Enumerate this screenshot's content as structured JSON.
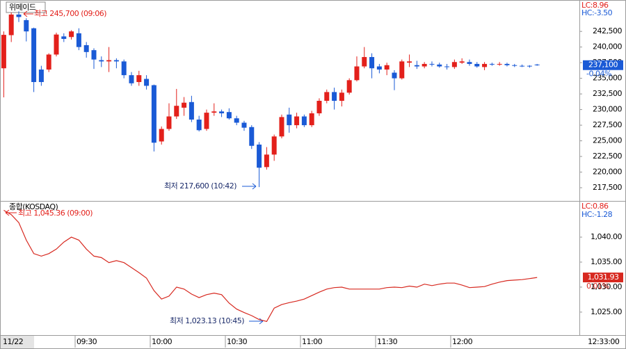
{
  "chart_data": [
    {
      "type": "candlestick",
      "title": "위메이드",
      "annotations": {
        "high": "최고 245,700 (09:06)",
        "low": "최저 217,600 (10:42)",
        "lc": "LC:8.96",
        "hc": "HC:-3.50",
        "last_price": "237,100",
        "change": "-0.04%"
      },
      "up_color": "#e3201b",
      "down_color": "#1a5ad6",
      "x": [
        0,
        3,
        6,
        9,
        12,
        15,
        18,
        21,
        24,
        27,
        30,
        33,
        36,
        39,
        42,
        45,
        48,
        51,
        54,
        57,
        60,
        63,
        66,
        69,
        72,
        75,
        78,
        81,
        84,
        87,
        90,
        93,
        96,
        99,
        102,
        105,
        108,
        111,
        114,
        117,
        120,
        123,
        126,
        129,
        132,
        135,
        138,
        141,
        144,
        147,
        150,
        153,
        156,
        159,
        162,
        165,
        168,
        171,
        174,
        177,
        180,
        183,
        186,
        189,
        192,
        195,
        198,
        201,
        204,
        207,
        210,
        213
      ],
      "open": [
        236600,
        241900,
        245200,
        244300,
        243000,
        236400,
        236400,
        238800,
        241700,
        241600,
        242200,
        240300,
        239500,
        237900,
        237700,
        237900,
        237700,
        235500,
        234400,
        234900,
        233900,
        224900,
        226900,
        228900,
        230300,
        231200,
        228400,
        226900,
        229500,
        229700,
        229600,
        228600,
        227900,
        227200,
        224400,
        220800,
        222800,
        225700,
        229200,
        227500,
        228900,
        227500,
        229400,
        231400,
        232800,
        231400,
        232700,
        234700,
        236900,
        238400,
        236900,
        236400,
        235900,
        235000,
        237500,
        237100,
        236900,
        237300,
        237200,
        236900,
        236800,
        237500,
        237600,
        237300,
        236800,
        237300,
        237200,
        237300,
        237100,
        237000,
        237000,
        237200
      ],
      "high": [
        242500,
        245500,
        245700,
        244600,
        243100,
        237000,
        239000,
        242300,
        242200,
        242700,
        243000,
        240800,
        239800,
        238500,
        240000,
        238200,
        238000,
        236000,
        236200,
        235500,
        234000,
        227300,
        231000,
        233300,
        232000,
        232200,
        229000,
        230000,
        231000,
        230000,
        230200,
        229000,
        228200,
        227500,
        224800,
        224000,
        226000,
        229200,
        230300,
        229500,
        229200,
        229800,
        231800,
        233200,
        233500,
        233200,
        235000,
        238500,
        240000,
        239000,
        237300,
        237500,
        236300,
        238000,
        238800,
        237800,
        237600,
        237700,
        237500,
        237300,
        238000,
        238200,
        238000,
        237600,
        237600,
        237500,
        237600,
        237500,
        237300,
        237200,
        237100,
        237300
      ],
      "low": [
        231950,
        240800,
        244000,
        240900,
        232800,
        233800,
        236000,
        238500,
        240800,
        241200,
        239500,
        238300,
        236500,
        236800,
        236000,
        236600,
        235000,
        233800,
        233800,
        233200,
        223300,
        224400,
        226600,
        228500,
        229000,
        228000,
        226500,
        226600,
        229000,
        228800,
        228400,
        227500,
        226600,
        223700,
        217600,
        220400,
        221800,
        225400,
        226300,
        227000,
        227200,
        227200,
        229000,
        231000,
        230000,
        230500,
        232400,
        234500,
        236600,
        235000,
        235800,
        235500,
        233100,
        234800,
        236800,
        236500,
        236600,
        236900,
        236700,
        236400,
        236500,
        237300,
        237000,
        236700,
        236300,
        237000,
        237000,
        236900,
        236800,
        236800,
        236700,
        237000
      ],
      "close": [
        241950,
        245200,
        244800,
        242500,
        234400,
        234400,
        238800,
        242000,
        241300,
        242500,
        240000,
        239200,
        238000,
        237700,
        237900,
        237700,
        235500,
        234200,
        235500,
        233800,
        224700,
        226900,
        228900,
        230600,
        231100,
        228400,
        226700,
        229500,
        229700,
        229400,
        228600,
        227900,
        227100,
        224200,
        220700,
        222800,
        225700,
        228800,
        227500,
        228900,
        227500,
        229400,
        231400,
        232800,
        231400,
        232700,
        234700,
        236900,
        238400,
        236600,
        236400,
        237100,
        235000,
        237700,
        237700,
        236900,
        237300,
        237200,
        236900,
        236800,
        237600,
        237700,
        237300,
        236900,
        237300,
        237200,
        237300,
        237100,
        237000,
        236900,
        236900,
        237100
      ],
      "xlim": [
        0,
        231.4
      ],
      "ylim": [
        215500,
        247300
      ],
      "yticks": [
        {
          "value": 217500,
          "label": "217,500"
        },
        {
          "value": 220000,
          "label": "220,000"
        },
        {
          "value": 222500,
          "label": "222,500"
        },
        {
          "value": 225000,
          "label": "225,000"
        },
        {
          "value": 227500,
          "label": "227,500"
        },
        {
          "value": 230000,
          "label": "230,000"
        },
        {
          "value": 232500,
          "label": "232,500"
        },
        {
          "value": 235000,
          "label": "235,000"
        },
        {
          "value": 237500,
          "label": "237,500"
        },
        {
          "value": 240000,
          "label": "240,000"
        },
        {
          "value": 242500,
          "label": "242,500"
        }
      ]
    },
    {
      "type": "line",
      "title": "종합(KOSDAQ)",
      "color": "#d7281f",
      "annotations": {
        "high": "최고 1,045.36 (09:00)",
        "low": "최저 1,023.13 (10:45)",
        "lc": "LC:0.86",
        "hc": "HC:-1.28",
        "last_price": "1,031.93",
        "change": "0.01%"
      },
      "x": [
        0,
        3,
        6,
        9,
        12,
        15,
        18,
        21,
        24,
        27,
        30,
        33,
        36,
        39,
        42,
        45,
        48,
        51,
        54,
        57,
        60,
        63,
        66,
        69,
        72,
        75,
        78,
        81,
        84,
        87,
        90,
        93,
        96,
        99,
        102,
        105,
        108,
        111,
        114,
        117,
        120,
        123,
        126,
        129,
        132,
        135,
        138,
        141,
        144,
        147,
        150,
        153,
        156,
        159,
        162,
        165,
        168,
        171,
        174,
        177,
        180,
        183,
        186,
        189,
        192,
        195,
        198,
        201,
        204,
        207,
        210,
        213
      ],
      "values": [
        1045.36,
        1044.5,
        1042.9,
        1039.4,
        1036.7,
        1036.2,
        1036.7,
        1037.6,
        1039.0,
        1040.0,
        1039.4,
        1037.6,
        1036.2,
        1035.9,
        1034.9,
        1035.3,
        1034.9,
        1033.9,
        1032.9,
        1031.8,
        1029.3,
        1027.6,
        1028.2,
        1030.0,
        1029.6,
        1028.6,
        1027.9,
        1028.5,
        1028.8,
        1028.5,
        1026.8,
        1025.6,
        1024.9,
        1024.3,
        1023.5,
        1023.13,
        1025.8,
        1026.5,
        1026.9,
        1027.2,
        1027.6,
        1028.3,
        1029.0,
        1029.6,
        1029.9,
        1030.0,
        1029.6,
        1029.6,
        1029.6,
        1029.6,
        1029.6,
        1029.9,
        1030.0,
        1029.9,
        1030.2,
        1030.0,
        1030.6,
        1030.3,
        1030.6,
        1030.8,
        1030.8,
        1030.4,
        1029.9,
        1030.0,
        1030.1,
        1030.6,
        1031.0,
        1031.3,
        1031.4,
        1031.5,
        1031.7,
        1031.93
      ],
      "xlim": [
        0,
        231.4
      ],
      "ylim": [
        1020.4,
        1047.1
      ],
      "yticks": [
        {
          "value": 1025,
          "label": "1,025.00"
        },
        {
          "value": 1030,
          "label": "1,030.00"
        },
        {
          "value": 1035,
          "label": "1,035.00"
        },
        {
          "value": 1040,
          "label": "1,040.00"
        }
      ],
      "date_label": "11/22",
      "time_label": "12:33:00",
      "xticks": [
        {
          "value": 30,
          "label": "09:30"
        },
        {
          "value": 60,
          "label": "10:00"
        },
        {
          "value": 90,
          "label": "10:30"
        },
        {
          "value": 120,
          "label": "11:00"
        },
        {
          "value": 150,
          "label": "11:30"
        },
        {
          "value": 180,
          "label": "12:00"
        }
      ]
    }
  ]
}
